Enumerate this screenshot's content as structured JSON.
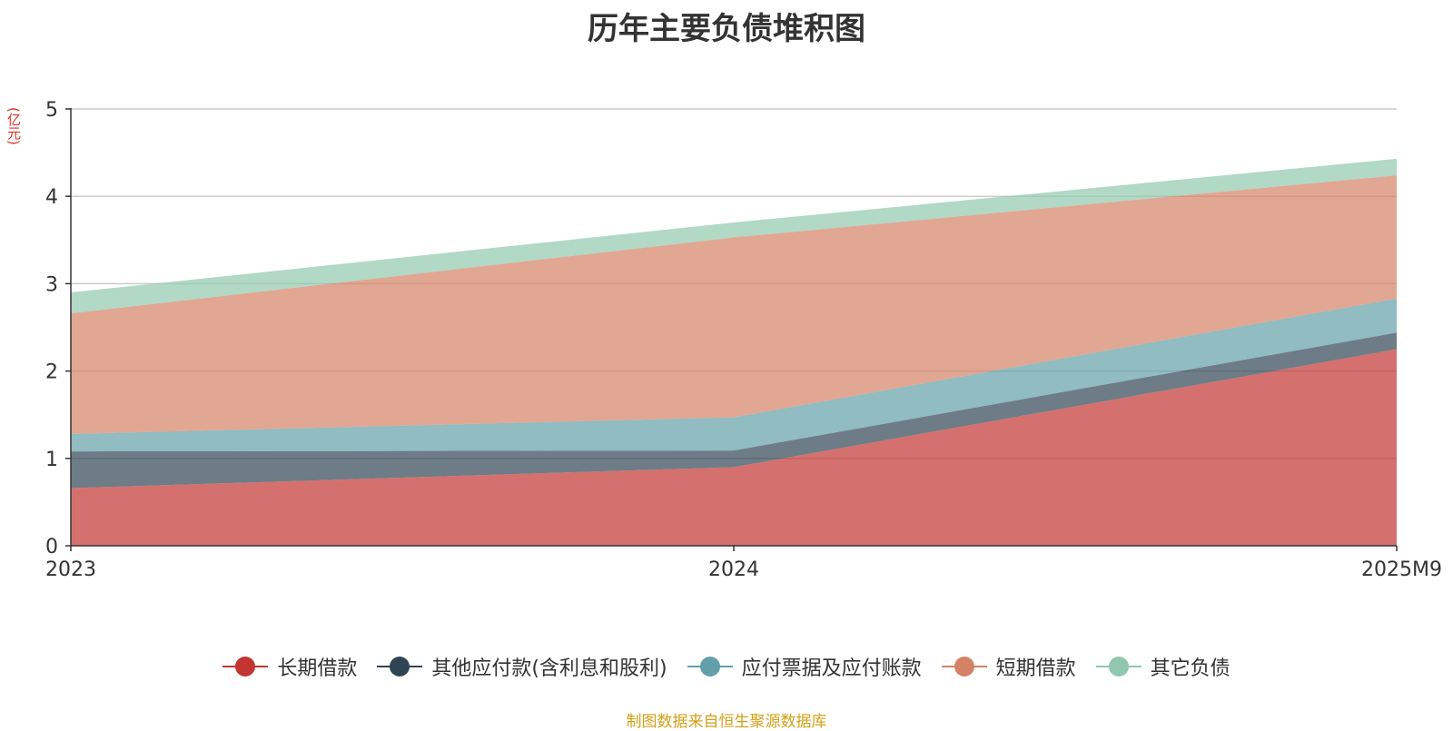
{
  "chart_data": {
    "type": "area",
    "stacked": true,
    "title": "历年主要负债堆积图",
    "ylabel": "(亿元)",
    "x": [
      "2023",
      "2024",
      "2025M9"
    ],
    "ylim": [
      0,
      5
    ],
    "yticks": [
      0,
      1,
      2,
      3,
      4,
      5
    ],
    "grid": true,
    "legend_position": "bottom",
    "series": [
      {
        "name": "长期借款",
        "color": "#c23531",
        "values": [
          0.66,
          0.9,
          2.25
        ]
      },
      {
        "name": "其他应付款(含利息和股利)",
        "color": "#2f4554",
        "values": [
          0.42,
          0.19,
          0.19
        ]
      },
      {
        "name": "应付票据及应付账款",
        "color": "#61a0a8",
        "values": [
          0.2,
          0.38,
          0.39
        ]
      },
      {
        "name": "短期借款",
        "color": "#d48265",
        "values": [
          1.38,
          2.06,
          1.41
        ]
      },
      {
        "name": "其它负债",
        "color": "#91c7ae",
        "values": [
          0.24,
          0.17,
          0.19
        ]
      }
    ]
  },
  "footer": {
    "source_note": "制图数据来自恒生聚源数据库"
  }
}
